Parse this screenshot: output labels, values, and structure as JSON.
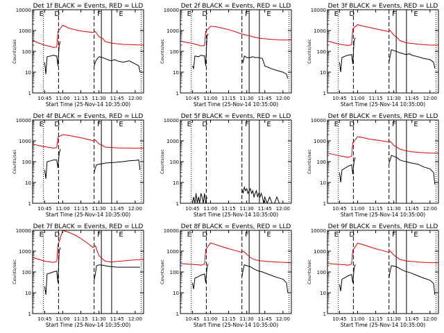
{
  "colors": {
    "events": "#000000",
    "lld": "#e00000",
    "axis": "#000000",
    "background": "#ffffff"
  },
  "common": {
    "ylabel": "Counts/sec",
    "xlabel": "Start Time (25-Nov-14 10:35:00)",
    "x_tick_labels": [
      "10:45",
      "11:00",
      "11:15",
      "11:30",
      "11:45",
      "12:00"
    ],
    "x_tick_minutes": [
      10,
      25,
      40,
      55,
      70,
      85
    ],
    "y_tick_labels": [
      "1",
      "10",
      "100",
      "1000",
      "10000"
    ],
    "y_tick_values": [
      1,
      10,
      100,
      1000,
      10000
    ],
    "xlim_minutes": [
      0,
      92
    ],
    "ylim": [
      1,
      10000
    ],
    "yscale": "log"
  },
  "event_markers": {
    "dotted": [
      9,
      90
    ],
    "dashed": [
      21.5,
      51
    ],
    "solid": [
      57,
      65.5
    ],
    "labels": [
      {
        "text": "E",
        "x": 9
      },
      {
        "text": "D",
        "x": 21.5
      },
      {
        "text": "F",
        "x": 57
      },
      {
        "text": "E",
        "x": 75
      }
    ]
  },
  "chart_data": [
    {
      "type": "line",
      "title": "Det 1f BLACK = Events, RED = LLD",
      "yscale": "log",
      "series": [
        {
          "name": "LLD",
          "color": "#e00000",
          "x": [
            0,
            5,
            10,
            15,
            17,
            20,
            21,
            25,
            30,
            35,
            40,
            45,
            50,
            52,
            55,
            58,
            60,
            65,
            70,
            75,
            80,
            85,
            92
          ],
          "y": [
            350,
            250,
            200,
            170,
            155,
            160,
            900,
            1800,
            1300,
            1100,
            950,
            880,
            800,
            900,
            500,
            420,
            300,
            250,
            230,
            215,
            210,
            205,
            200
          ]
        },
        {
          "name": "Events",
          "color": "#000000",
          "x": [
            10,
            11,
            12,
            15,
            17,
            20,
            21,
            22,
            23
          ],
          "y": [
            30,
            8,
            55,
            60,
            65,
            60,
            20,
            200,
            300
          ],
          "x2": [
            51,
            52,
            53,
            55,
            58,
            60,
            62,
            65,
            68,
            70,
            75,
            80,
            85,
            88,
            89
          ],
          "y2": [
            20,
            30,
            40,
            55,
            50,
            45,
            40,
            35,
            40,
            35,
            30,
            35,
            25,
            20,
            10
          ]
        }
      ]
    },
    {
      "type": "line",
      "title": "Det 2f BLACK = Events, RED = LLD",
      "yscale": "log",
      "series": [
        {
          "name": "LLD",
          "color": "#e00000",
          "x": [
            0,
            5,
            10,
            15,
            17,
            20,
            21,
            25,
            30,
            35,
            40,
            45,
            50,
            52,
            55,
            58,
            60,
            65,
            70,
            75,
            80,
            85,
            92
          ],
          "y": [
            320,
            270,
            240,
            200,
            180,
            190,
            900,
            1600,
            1500,
            1300,
            1100,
            900,
            700,
            650,
            600,
            550,
            500,
            430,
            400,
            380,
            360,
            350,
            360
          ]
        },
        {
          "name": "Events",
          "color": "#000000",
          "x": [
            10,
            11,
            12,
            15,
            17,
            20,
            21,
            22,
            23
          ],
          "y": [
            20,
            15,
            60,
            55,
            65,
            60,
            20,
            500,
            700
          ],
          "x2": [
            51,
            52,
            53,
            55,
            58,
            60,
            62,
            65,
            68,
            70,
            75,
            80,
            85,
            88,
            89
          ],
          "y2": [
            40,
            30,
            60,
            50,
            50,
            55,
            50,
            50,
            45,
            20,
            15,
            12,
            10,
            8,
            5
          ]
        }
      ]
    },
    {
      "type": "line",
      "title": "Det 3f BLACK = Events, RED = LLD",
      "yscale": "log",
      "series": [
        {
          "name": "LLD",
          "color": "#e00000",
          "x": [
            0,
            5,
            10,
            15,
            17,
            20,
            21,
            25,
            30,
            35,
            40,
            45,
            50,
            52,
            55,
            58,
            60,
            65,
            70,
            75,
            80,
            85,
            92
          ],
          "y": [
            320,
            260,
            220,
            200,
            190,
            210,
            1200,
            1900,
            1600,
            1400,
            1200,
            1050,
            900,
            1000,
            600,
            450,
            330,
            260,
            240,
            220,
            210,
            200,
            200
          ]
        },
        {
          "name": "Events",
          "color": "#000000",
          "x": [
            10,
            11,
            12,
            15,
            17,
            20,
            21,
            22,
            23
          ],
          "y": [
            30,
            10,
            50,
            60,
            65,
            70,
            25,
            300,
            450
          ],
          "x2": [
            51,
            52,
            53,
            55,
            58,
            60,
            62,
            65,
            68,
            70,
            75,
            80,
            85,
            88,
            89
          ],
          "y2": [
            30,
            60,
            120,
            110,
            95,
            85,
            80,
            70,
            75,
            65,
            55,
            45,
            40,
            30,
            15
          ]
        }
      ]
    },
    {
      "type": "line",
      "title": "Det 4f BLACK = Events, RED = LLD",
      "yscale": "log",
      "series": [
        {
          "name": "LLD",
          "color": "#e00000",
          "x": [
            0,
            5,
            10,
            15,
            17,
            20,
            21,
            25,
            30,
            35,
            40,
            45,
            50,
            52,
            55,
            58,
            60,
            65,
            70,
            75,
            80,
            85,
            92
          ],
          "y": [
            700,
            600,
            520,
            470,
            450,
            470,
            1500,
            2000,
            1800,
            1600,
            1400,
            1200,
            1000,
            1100,
            700,
            600,
            500,
            480,
            460,
            450,
            450,
            440,
            450
          ]
        },
        {
          "name": "Events",
          "color": "#000000",
          "x": [
            10,
            11,
            12,
            15,
            17,
            20,
            21,
            22,
            23
          ],
          "y": [
            40,
            15,
            100,
            110,
            120,
            120,
            50,
            250,
            400
          ],
          "x2": [
            51,
            52,
            53,
            55,
            58,
            60,
            62,
            65,
            68,
            70,
            75,
            80,
            85,
            88,
            89
          ],
          "y2": [
            30,
            50,
            70,
            75,
            80,
            85,
            88,
            90,
            92,
            95,
            100,
            110,
            115,
            120,
            40
          ]
        }
      ]
    },
    {
      "type": "line",
      "title": "Det 5f BLACK = Events, RED = LLD",
      "yscale": "log",
      "series": [
        {
          "name": "LLD",
          "color": "#e00000",
          "x": [],
          "y": []
        },
        {
          "name": "Events",
          "color": "#000000",
          "x": [
            10,
            11,
            12,
            13,
            14,
            15,
            16,
            17,
            18,
            19,
            20,
            21,
            22
          ],
          "y": [
            1,
            2,
            1,
            3,
            1,
            2,
            1,
            3,
            2,
            1,
            3,
            1,
            2
          ],
          "x2": [
            51,
            52,
            53,
            54,
            55,
            56,
            57,
            58,
            59,
            60,
            61,
            62,
            63,
            64,
            65,
            66,
            67,
            68,
            69,
            70,
            72,
            74,
            76,
            78,
            80,
            82
          ],
          "y2": [
            5,
            3,
            6,
            4,
            5,
            3,
            4,
            5,
            3,
            4,
            2,
            3,
            4,
            2,
            3,
            2,
            3,
            2,
            1,
            2,
            1,
            2,
            1,
            1,
            2,
            1
          ]
        }
      ]
    },
    {
      "type": "line",
      "title": "Det 6f BLACK = Events, RED = LLD",
      "yscale": "log",
      "series": [
        {
          "name": "LLD",
          "color": "#e00000",
          "x": [
            0,
            5,
            10,
            15,
            17,
            20,
            21,
            25,
            30,
            35,
            40,
            45,
            50,
            52,
            55,
            58,
            60,
            65,
            70,
            75,
            80,
            85,
            92
          ],
          "y": [
            260,
            220,
            190,
            170,
            160,
            180,
            800,
            1600,
            1400,
            1200,
            1100,
            1000,
            900,
            950,
            600,
            480,
            400,
            330,
            300,
            280,
            270,
            260,
            255
          ]
        },
        {
          "name": "Events",
          "color": "#000000",
          "x": [
            10,
            11,
            12,
            15,
            17,
            20,
            21,
            22,
            23
          ],
          "y": [
            30,
            10,
            40,
            50,
            60,
            70,
            25,
            100,
            160
          ],
          "x2": [
            51,
            52,
            53,
            55,
            58,
            60,
            62,
            65,
            68,
            70,
            75,
            80,
            85,
            88,
            89
          ],
          "y2": [
            80,
            120,
            200,
            180,
            150,
            120,
            110,
            100,
            90,
            85,
            75,
            55,
            45,
            30,
            8
          ]
        }
      ]
    },
    {
      "type": "line",
      "title": "Det 7f BLACK = Events, RED = LLD",
      "yscale": "log",
      "series": [
        {
          "name": "LLD",
          "color": "#e00000",
          "x": [
            0,
            5,
            10,
            15,
            17,
            20,
            21,
            25,
            30,
            35,
            40,
            45,
            50,
            52,
            55,
            58,
            60,
            65,
            70,
            75,
            80,
            85,
            92
          ],
          "y": [
            500,
            400,
            330,
            300,
            290,
            320,
            2000,
            10000,
            8000,
            6000,
            4000,
            2500,
            1500,
            1800,
            600,
            420,
            330,
            300,
            320,
            340,
            360,
            380,
            400
          ]
        },
        {
          "name": "Events",
          "color": "#000000",
          "x": [
            10,
            11,
            12,
            15,
            17,
            20,
            21,
            22,
            23
          ],
          "y": [
            20,
            8,
            80,
            90,
            100,
            110,
            30,
            1000,
            1500
          ],
          "x2": [
            51,
            52,
            53,
            55,
            58,
            60,
            62,
            65,
            68,
            70,
            75,
            80,
            85,
            88,
            89
          ],
          "y2": [
            40,
            80,
            200,
            220,
            210,
            200,
            190,
            180,
            175,
            170,
            170,
            170,
            170,
            170,
            170
          ]
        }
      ]
    },
    {
      "type": "line",
      "title": "Det 8f BLACK = Events, RED = LLD",
      "yscale": "log",
      "series": [
        {
          "name": "LLD",
          "color": "#e00000",
          "x": [
            0,
            5,
            10,
            15,
            17,
            20,
            21,
            25,
            30,
            35,
            40,
            45,
            50,
            52,
            55,
            58,
            60,
            65,
            70,
            75,
            80,
            85,
            92
          ],
          "y": [
            260,
            240,
            230,
            220,
            210,
            240,
            1200,
            2500,
            2000,
            1600,
            1300,
            1100,
            900,
            1000,
            700,
            500,
            420,
            350,
            330,
            310,
            300,
            290,
            280
          ]
        },
        {
          "name": "Events",
          "color": "#000000",
          "x": [
            10,
            11,
            12,
            15,
            17,
            20,
            21,
            22,
            23
          ],
          "y": [
            30,
            15,
            50,
            60,
            70,
            80,
            30,
            150,
            250
          ],
          "x2": [
            51,
            52,
            53,
            55,
            58,
            60,
            62,
            65,
            68,
            70,
            75,
            80,
            85,
            88,
            89
          ],
          "y2": [
            60,
            120,
            220,
            200,
            180,
            150,
            130,
            110,
            100,
            90,
            70,
            55,
            45,
            30,
            10
          ]
        }
      ]
    },
    {
      "type": "line",
      "title": "Det 9f BLACK = Events, RED = LLD",
      "yscale": "log",
      "series": [
        {
          "name": "LLD",
          "color": "#e00000",
          "x": [
            0,
            5,
            10,
            15,
            17,
            20,
            21,
            25,
            30,
            35,
            40,
            45,
            50,
            52,
            55,
            58,
            60,
            65,
            70,
            75,
            80,
            85,
            92
          ],
          "y": [
            260,
            240,
            230,
            220,
            210,
            240,
            1100,
            2400,
            2000,
            1600,
            1300,
            1100,
            900,
            1000,
            650,
            480,
            400,
            340,
            320,
            300,
            290,
            280,
            280
          ]
        },
        {
          "name": "Events",
          "color": "#000000",
          "x": [
            10,
            11,
            12,
            15,
            17,
            20,
            21,
            22,
            23
          ],
          "y": [
            25,
            12,
            45,
            55,
            65,
            75,
            30,
            140,
            230
          ],
          "x2": [
            51,
            52,
            53,
            55,
            58,
            60,
            62,
            65,
            68,
            70,
            75,
            80,
            85,
            88,
            89
          ],
          "y2": [
            50,
            110,
            200,
            190,
            170,
            145,
            125,
            105,
            95,
            85,
            65,
            50,
            40,
            28,
            8
          ]
        }
      ]
    }
  ]
}
